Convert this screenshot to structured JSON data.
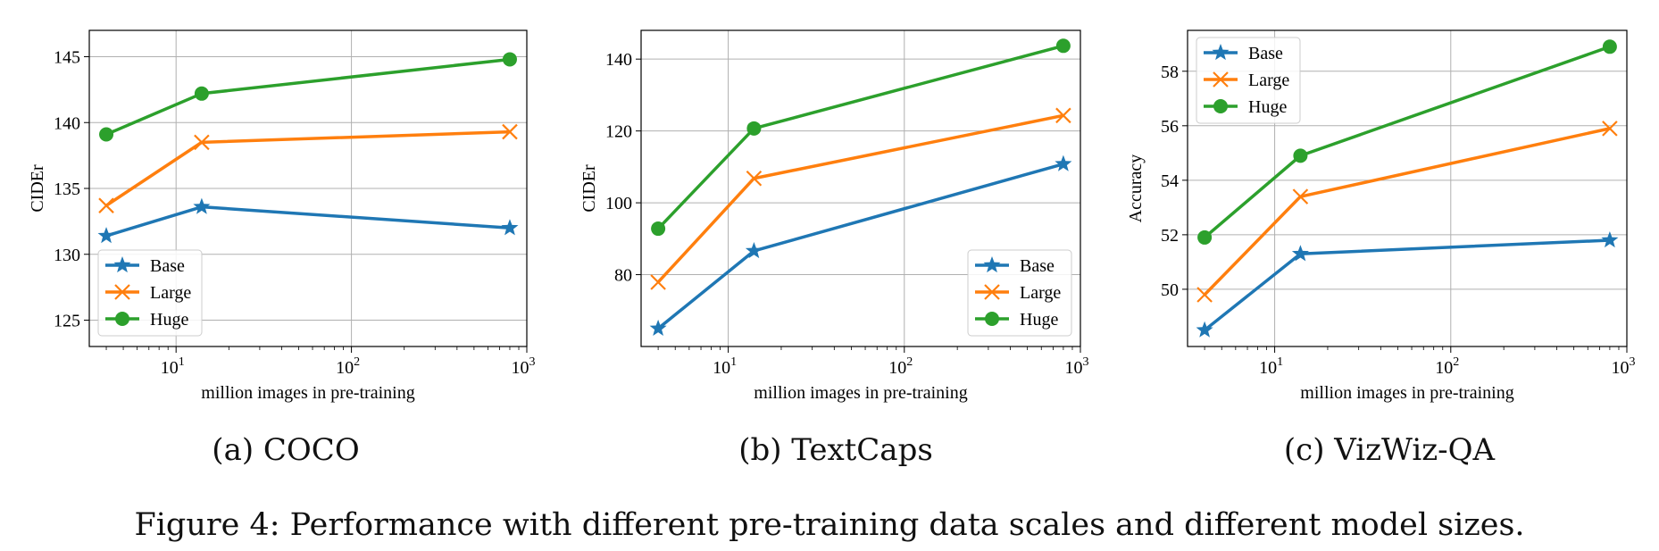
{
  "figure_caption": "Figure 4: Performance with different pre-training data scales and different model sizes.",
  "colors": {
    "Base": "#1f77b4",
    "Large": "#ff7f0e",
    "Huge": "#2ca02c",
    "grid": "#b0b0b0"
  },
  "chart_data": [
    {
      "type": "line",
      "title": "(a) COCO",
      "xlabel": "million images in pre-training",
      "ylabel": "CIDEr",
      "xscale": "log",
      "xlim": [
        3.2,
        1000
      ],
      "ylim": [
        123,
        147
      ],
      "x_ticks": [
        {
          "value": 10,
          "base": "10",
          "exp": "1"
        },
        {
          "value": 100,
          "base": "10",
          "exp": "2"
        },
        {
          "value": 1000,
          "base": "10",
          "exp": "3"
        }
      ],
      "y_ticks": [
        125,
        130,
        135,
        140,
        145
      ],
      "legend_position": "lower-left",
      "x": [
        4,
        14,
        800
      ],
      "series": [
        {
          "name": "Base",
          "marker": "star",
          "values": [
            131.4,
            133.6,
            132.0
          ]
        },
        {
          "name": "Large",
          "marker": "x",
          "values": [
            133.7,
            138.5,
            139.3
          ]
        },
        {
          "name": "Huge",
          "marker": "circle",
          "values": [
            139.1,
            142.2,
            144.8
          ]
        }
      ]
    },
    {
      "type": "line",
      "title": "(b) TextCaps",
      "xlabel": "million images in pre-training",
      "ylabel": "CIDEr",
      "xscale": "log",
      "xlim": [
        3.2,
        1000
      ],
      "ylim": [
        60,
        148
      ],
      "x_ticks": [
        {
          "value": 10,
          "base": "10",
          "exp": "1"
        },
        {
          "value": 100,
          "base": "10",
          "exp": "2"
        },
        {
          "value": 1000,
          "base": "10",
          "exp": "3"
        }
      ],
      "y_ticks": [
        80,
        100,
        120,
        140
      ],
      "legend_position": "lower-right",
      "x": [
        4,
        14,
        800
      ],
      "series": [
        {
          "name": "Base",
          "marker": "star",
          "values": [
            65.0,
            86.6,
            110.8
          ]
        },
        {
          "name": "Large",
          "marker": "x",
          "values": [
            77.9,
            106.8,
            124.3
          ]
        },
        {
          "name": "Huge",
          "marker": "circle",
          "values": [
            92.8,
            120.7,
            143.7
          ]
        }
      ]
    },
    {
      "type": "line",
      "title": "(c) VizWiz-QA",
      "xlabel": "million images in pre-training",
      "ylabel": "Accuracy",
      "xscale": "log",
      "xlim": [
        3.2,
        1000
      ],
      "ylim": [
        47.9,
        59.5
      ],
      "x_ticks": [
        {
          "value": 10,
          "base": "10",
          "exp": "1"
        },
        {
          "value": 100,
          "base": "10",
          "exp": "2"
        },
        {
          "value": 1000,
          "base": "10",
          "exp": "3"
        }
      ],
      "y_ticks": [
        50,
        52,
        54,
        56,
        58
      ],
      "legend_position": "upper-left",
      "x": [
        4,
        14,
        800
      ],
      "series": [
        {
          "name": "Base",
          "marker": "star",
          "values": [
            48.5,
            51.3,
            51.8
          ]
        },
        {
          "name": "Large",
          "marker": "x",
          "values": [
            49.8,
            53.4,
            55.9
          ]
        },
        {
          "name": "Huge",
          "marker": "circle",
          "values": [
            51.9,
            54.9,
            58.9
          ]
        }
      ]
    }
  ]
}
